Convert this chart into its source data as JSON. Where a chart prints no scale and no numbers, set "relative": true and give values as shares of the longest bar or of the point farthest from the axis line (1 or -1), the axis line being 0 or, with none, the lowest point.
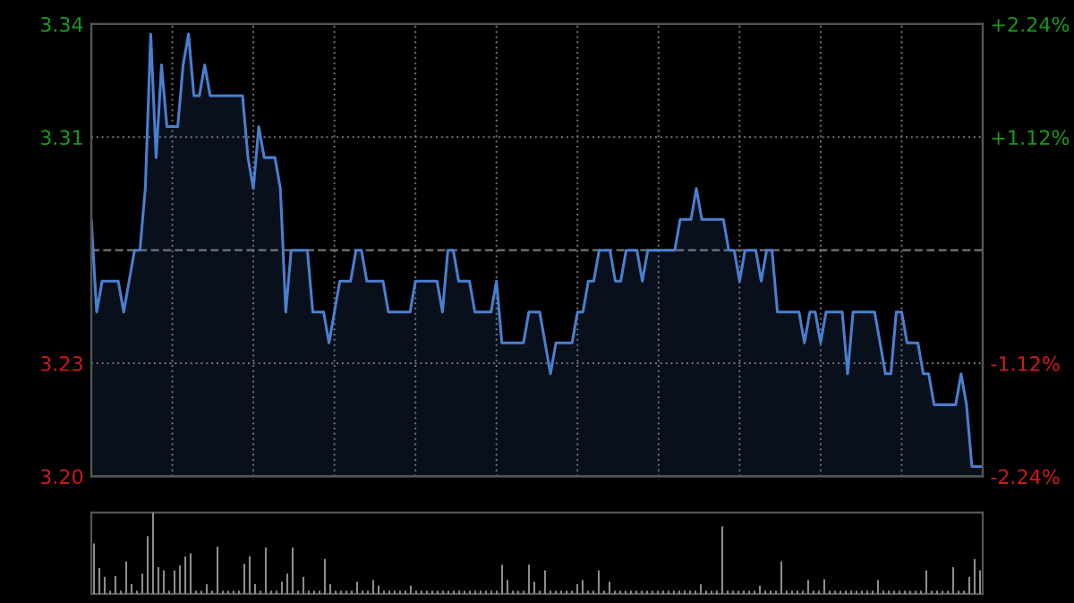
{
  "chart_data": [
    {
      "type": "area",
      "ylim": [
        3.1968,
        3.3432
      ],
      "y2lim": [
        -2.24,
        2.24
      ],
      "categories": [
        null,
        null,
        null,
        null,
        null,
        null,
        null,
        null,
        null,
        null,
        null,
        null,
        null,
        null,
        null,
        null,
        null,
        null,
        null,
        null,
        null,
        null,
        null,
        null,
        null,
        null,
        null,
        null,
        null,
        null,
        null,
        null,
        null,
        null,
        null,
        null,
        null,
        null,
        null,
        null,
        null,
        null,
        null,
        null,
        null,
        null,
        null,
        null,
        null,
        null,
        null,
        null,
        null,
        null,
        null,
        null,
        null,
        null,
        null,
        null,
        null,
        null,
        null,
        null,
        null,
        null,
        null,
        null,
        null,
        null,
        null,
        null,
        null,
        null,
        null,
        null,
        null,
        null,
        null,
        null,
        null,
        null,
        null,
        null,
        null,
        null,
        null,
        null,
        null,
        null,
        null,
        null,
        null,
        null,
        null,
        null,
        null,
        null,
        null,
        null,
        null,
        null,
        null,
        null,
        null,
        null,
        null,
        null,
        null,
        null,
        null,
        null,
        null,
        null,
        null,
        null,
        null,
        null,
        null,
        null,
        null,
        null,
        null,
        null,
        null,
        null,
        null,
        null,
        null,
        null,
        null,
        null,
        null,
        null,
        null,
        null,
        null,
        null,
        null,
        null,
        null,
        null,
        null,
        null,
        null,
        null,
        null,
        null,
        null,
        null,
        null,
        null,
        null,
        null,
        null,
        null,
        null,
        null,
        null,
        null,
        null,
        null,
        null,
        null,
        null,
        null
      ],
      "yticks": [
        {
          "value": 3.1968,
          "label": "3.20"
        },
        {
          "value": 3.2334,
          "label": "3.23"
        },
        {
          "value": 3.3066,
          "label": "3.31"
        },
        {
          "value": 3.3432,
          "label": "3.34"
        }
      ],
      "y2ticks": [
        {
          "value": -2.24,
          "label": "-2.24%"
        },
        {
          "value": -1.12,
          "label": "-1.12%"
        },
        {
          "value": 1.12,
          "label": "+1.12%"
        },
        {
          "value": 2.24,
          "label": "+2.24%"
        }
      ],
      "tick_labels": "y",
      "grid": true,
      "line_style": "solid",
      "ref_lines": [
        {
          "axis": "y",
          "value": 3.27,
          "label": null,
          "line_style": "dashed"
        }
      ],
      "series": [
        {
          "color": "#4a7fd0",
          "values": [
            3.28,
            3.25,
            3.26,
            3.26,
            3.26,
            3.26,
            3.25,
            3.26,
            3.27,
            3.27,
            3.29,
            3.34,
            3.3,
            3.33,
            3.31,
            3.31,
            3.31,
            3.33,
            3.34,
            3.32,
            3.32,
            3.33,
            3.32,
            3.32,
            3.32,
            3.32,
            3.32,
            3.32,
            3.32,
            3.3,
            3.29,
            3.31,
            3.3,
            3.3,
            3.3,
            3.29,
            3.25,
            3.27,
            3.27,
            3.27,
            3.27,
            3.25,
            3.25,
            3.25,
            3.24,
            3.25,
            3.26,
            3.26,
            3.26,
            3.27,
            3.27,
            3.26,
            3.26,
            3.26,
            3.26,
            3.25,
            3.25,
            3.25,
            3.25,
            3.25,
            3.26,
            3.26,
            3.26,
            3.26,
            3.26,
            3.25,
            3.27,
            3.27,
            3.26,
            3.26,
            3.26,
            3.25,
            3.25,
            3.25,
            3.25,
            3.26,
            3.24,
            3.24,
            3.24,
            3.24,
            3.24,
            3.25,
            3.25,
            3.25,
            3.24,
            3.23,
            3.24,
            3.24,
            3.24,
            3.24,
            3.25,
            3.25,
            3.26,
            3.26,
            3.27,
            3.27,
            3.27,
            3.26,
            3.26,
            3.27,
            3.27,
            3.27,
            3.26,
            3.27,
            3.27,
            3.27,
            3.27,
            3.27,
            3.27,
            3.28,
            3.28,
            3.28,
            3.29,
            3.28,
            3.28,
            3.28,
            3.28,
            3.28,
            3.27,
            3.27,
            3.26,
            3.27,
            3.27,
            3.27,
            3.26,
            3.27,
            3.27,
            3.25,
            3.25,
            3.25,
            3.25,
            3.25,
            3.24,
            3.25,
            3.25,
            3.24,
            3.25,
            3.25,
            3.25,
            3.25,
            3.23,
            3.25,
            3.25,
            3.25,
            3.25,
            3.25,
            3.24,
            3.23,
            3.23,
            3.25,
            3.25,
            3.24,
            3.24,
            3.24,
            3.23,
            3.23,
            3.22,
            3.22,
            3.22,
            3.22,
            3.22,
            3.23,
            3.22,
            3.2,
            3.2,
            3.2
          ]
        }
      ]
    },
    {
      "type": "bar",
      "relative": true,
      "tick_labels": false,
      "color": "#8c8c8c",
      "categories": [
        null,
        null,
        null,
        null,
        null,
        null,
        null,
        null,
        null,
        null,
        null,
        null,
        null,
        null,
        null,
        null,
        null,
        null,
        null,
        null,
        null,
        null,
        null,
        null,
        null,
        null,
        null,
        null,
        null,
        null,
        null,
        null,
        null,
        null,
        null,
        null,
        null,
        null,
        null,
        null,
        null,
        null,
        null,
        null,
        null,
        null,
        null,
        null,
        null,
        null,
        null,
        null,
        null,
        null,
        null,
        null,
        null,
        null,
        null,
        null,
        null,
        null,
        null,
        null,
        null,
        null,
        null,
        null,
        null,
        null,
        null,
        null,
        null,
        null,
        null,
        null,
        null,
        null,
        null,
        null,
        null,
        null,
        null,
        null,
        null,
        null,
        null,
        null,
        null,
        null,
        null,
        null,
        null,
        null,
        null,
        null,
        null,
        null,
        null,
        null,
        null,
        null,
        null,
        null,
        null,
        null,
        null,
        null,
        null,
        null,
        null,
        null,
        null,
        null,
        null,
        null,
        null,
        null,
        null,
        null,
        null,
        null,
        null,
        null,
        null,
        null,
        null,
        null,
        null,
        null,
        null,
        null,
        null,
        null,
        null,
        null,
        null,
        null,
        null,
        null,
        null,
        null,
        null,
        null,
        null,
        null,
        null,
        null,
        null,
        null,
        null,
        null,
        null,
        null,
        null,
        null,
        null,
        null,
        null,
        null,
        null,
        null,
        null,
        null,
        null,
        null
      ],
      "values": [
        0.62,
        0.32,
        0.21,
        0.04,
        0.22,
        0.04,
        0.4,
        0.12,
        0.04,
        0.25,
        0.71,
        1,
        0.33,
        0.29,
        0.04,
        0.29,
        0.35,
        0.46,
        0.5,
        0.04,
        0.04,
        0.12,
        0.04,
        0.58,
        0.04,
        0.04,
        0.04,
        0.04,
        0.37,
        0.46,
        0.12,
        0.04,
        0.57,
        0.04,
        0.04,
        0.15,
        0.25,
        0.57,
        0.04,
        0.21,
        0.04,
        0.04,
        0.04,
        0.43,
        0.12,
        0.04,
        0.04,
        0.04,
        0.04,
        0.15,
        0.04,
        0.04,
        0.17,
        0.1,
        0.04,
        0.04,
        0.04,
        0.04,
        0.04,
        0.1,
        0.04,
        0.04,
        0.04,
        0.04,
        0.04,
        0.04,
        0.04,
        0.04,
        0.04,
        0.04,
        0.04,
        0.04,
        0.04,
        0.04,
        0.04,
        0.04,
        0.36,
        0.17,
        0.04,
        0.04,
        0.04,
        0.36,
        0.15,
        0.04,
        0.29,
        0.04,
        0.04,
        0.04,
        0.04,
        0.04,
        0.12,
        0.17,
        0.04,
        0.04,
        0.29,
        0.04,
        0.15,
        0.04,
        0.04,
        0.04,
        0.04,
        0.04,
        0.04,
        0.04,
        0.04,
        0.04,
        0.04,
        0.04,
        0.04,
        0.04,
        0.04,
        0.04,
        0.04,
        0.12,
        0.04,
        0.04,
        0.04,
        0.83,
        0.04,
        0.04,
        0.04,
        0.04,
        0.04,
        0.04,
        0.1,
        0.04,
        0.04,
        0.04,
        0.4,
        0.04,
        0.04,
        0.04,
        0.04,
        0.17,
        0.04,
        0.04,
        0.18,
        0.04,
        0.04,
        0.04,
        0.04,
        0.04,
        0.04,
        0.04,
        0.04,
        0.04,
        0.17,
        0.04,
        0.04,
        0.04,
        0.04,
        0.04,
        0.04,
        0.04,
        0.04,
        0.29,
        0.04,
        0.04,
        0.04,
        0.04,
        0.33,
        0.04,
        0.04,
        0.21,
        0.43,
        0.29
      ]
    }
  ]
}
